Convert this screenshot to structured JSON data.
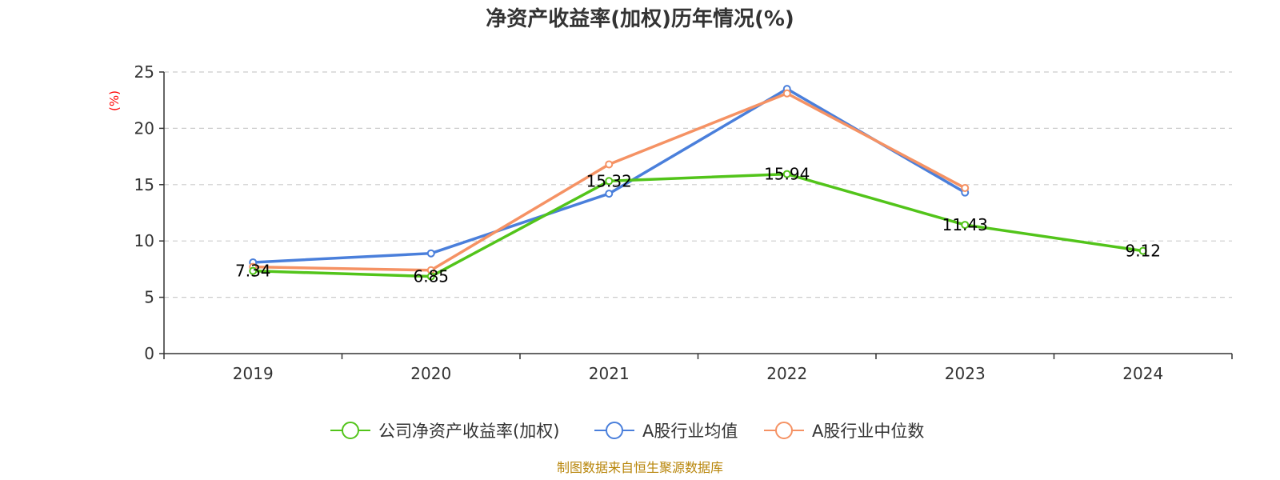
{
  "chart_data": {
    "type": "line",
    "title": "净资产收益率(加权)历年情况(%)",
    "ylabel": "(%)",
    "ylim": [
      0,
      25
    ],
    "yticks": [
      0,
      5,
      10,
      15,
      20,
      25
    ],
    "grid": true,
    "legend_position": "bottom",
    "categories": [
      "2019",
      "2020",
      "2021",
      "2022",
      "2023",
      "2024"
    ],
    "series": [
      {
        "name": "公司净资产收益率(加权)",
        "color": "#52c41a",
        "values": [
          7.34,
          6.85,
          15.32,
          15.94,
          11.43,
          9.12
        ],
        "labels": [
          "7.34",
          "6.85",
          "15.32",
          "15.94",
          "11.43",
          "9.12"
        ]
      },
      {
        "name": "A股行业均值",
        "color": "#4a7fdb",
        "values": [
          8.1,
          8.9,
          14.2,
          23.5,
          14.3,
          null
        ]
      },
      {
        "name": "A股行业中位数",
        "color": "#f59264",
        "values": [
          7.7,
          7.4,
          16.8,
          23.1,
          14.7,
          null
        ]
      }
    ]
  },
  "source": "制图数据来自恒生聚源数据库"
}
